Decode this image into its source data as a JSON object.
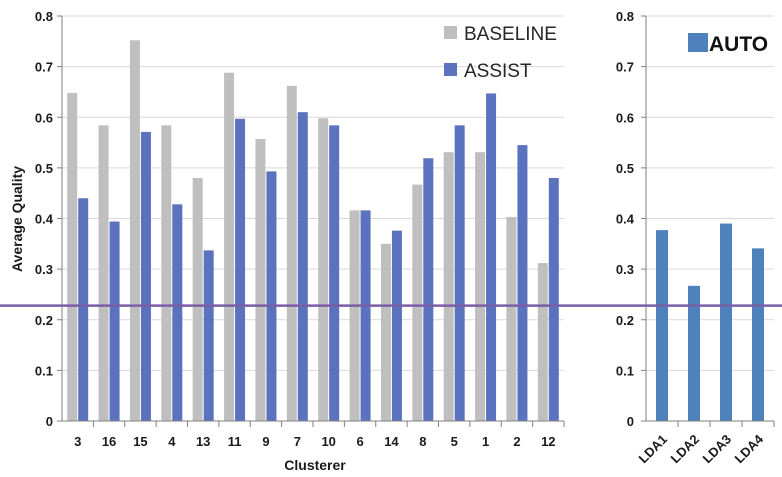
{
  "chart_data": [
    {
      "type": "bar",
      "xlabel": "Clusterer",
      "ylabel": "Average Quality",
      "ylim": [
        0,
        0.8
      ],
      "yticks": [
        "0",
        "0.1",
        "0.2",
        "0.3",
        "0.4",
        "0.5",
        "0.6",
        "0.7",
        "0.8"
      ],
      "categories": [
        "3",
        "16",
        "15",
        "4",
        "13",
        "11",
        "9",
        "7",
        "10",
        "6",
        "14",
        "8",
        "5",
        "1",
        "2",
        "12"
      ],
      "series": [
        {
          "name": "BASELINE",
          "color": "#bfbfbf",
          "values": [
            0.648,
            0.584,
            0.752,
            0.584,
            0.48,
            0.688,
            0.557,
            0.662,
            0.598,
            0.416,
            0.35,
            0.467,
            0.531,
            0.531,
            0.403,
            0.312
          ]
        },
        {
          "name": "ASSIST",
          "color": "#5b72be",
          "values": [
            0.44,
            0.394,
            0.571,
            0.428,
            0.337,
            0.597,
            0.493,
            0.61,
            0.584,
            0.416,
            0.376,
            0.519,
            0.584,
            0.647,
            0.545,
            0.48
          ]
        }
      ],
      "grid": true,
      "legend": "top-right"
    },
    {
      "type": "bar",
      "xlabel": "",
      "ylabel": "",
      "ylim": [
        0,
        0.8
      ],
      "yticks": [
        "0",
        "0.1",
        "0.2",
        "0.3",
        "0.4",
        "0.5",
        "0.6",
        "0.7",
        "0.8"
      ],
      "categories": [
        "LDA1",
        "LDA2",
        "LDA3",
        "LDA4"
      ],
      "series": [
        {
          "name": "AUTO",
          "color": "#4f81bd",
          "values": [
            0.377,
            0.267,
            0.39,
            0.341
          ]
        }
      ],
      "grid": true,
      "legend": "top-right"
    }
  ],
  "reference_line": {
    "value": 0.228,
    "color": "#7b5ea7"
  }
}
